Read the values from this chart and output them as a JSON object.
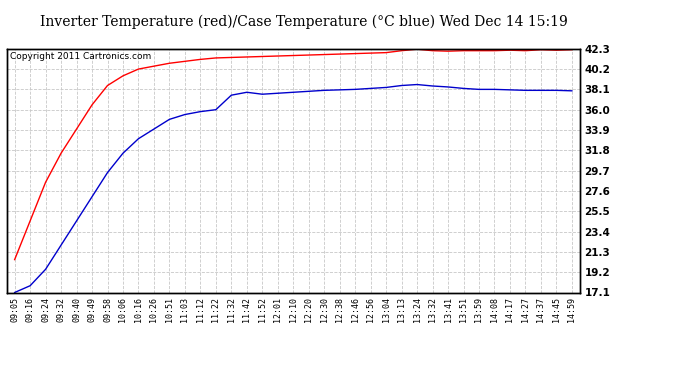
{
  "title": "Inverter Temperature (red)/Case Temperature (°C blue) Wed Dec 14 15:19",
  "copyright": "Copyright 2011 Cartronics.com",
  "x_labels": [
    "09:05",
    "09:16",
    "09:24",
    "09:32",
    "09:40",
    "09:49",
    "09:58",
    "10:06",
    "10:16",
    "10:26",
    "10:51",
    "11:03",
    "11:12",
    "11:22",
    "11:32",
    "11:42",
    "11:52",
    "12:01",
    "12:10",
    "12:20",
    "12:30",
    "12:38",
    "12:46",
    "12:56",
    "13:04",
    "13:13",
    "13:24",
    "13:32",
    "13:41",
    "13:51",
    "13:59",
    "14:08",
    "14:17",
    "14:27",
    "14:37",
    "14:45",
    "14:59"
  ],
  "yticks": [
    17.1,
    19.2,
    21.3,
    23.4,
    25.5,
    27.6,
    29.7,
    31.8,
    33.9,
    36.0,
    38.1,
    40.2,
    42.3
  ],
  "ymin": 17.1,
  "ymax": 42.3,
  "red_data": [
    20.5,
    24.5,
    28.5,
    31.5,
    34.0,
    36.5,
    38.5,
    39.5,
    40.2,
    40.5,
    40.8,
    41.0,
    41.2,
    41.35,
    41.4,
    41.45,
    41.5,
    41.55,
    41.6,
    41.65,
    41.7,
    41.75,
    41.8,
    41.85,
    41.9,
    42.1,
    42.25,
    42.1,
    42.05,
    42.1,
    42.1,
    42.1,
    42.15,
    42.1,
    42.2,
    42.15,
    42.2
  ],
  "blue_data": [
    17.1,
    17.8,
    19.5,
    22.0,
    24.5,
    27.0,
    29.5,
    31.5,
    33.0,
    34.0,
    35.0,
    35.5,
    35.8,
    36.0,
    37.5,
    37.8,
    37.6,
    37.7,
    37.8,
    37.9,
    38.0,
    38.05,
    38.1,
    38.2,
    38.3,
    38.5,
    38.6,
    38.45,
    38.35,
    38.2,
    38.1,
    38.1,
    38.05,
    38.0,
    38.0,
    38.0,
    37.95
  ],
  "red_color": "#ff0000",
  "blue_color": "#0000cc",
  "bg_color": "#ffffff",
  "plot_bg_color": "#ffffff",
  "grid_color": "#c8c8c8",
  "title_fontsize": 10,
  "copyright_fontsize": 6.5,
  "tick_fontsize": 7.5,
  "xtick_fontsize": 6.0
}
